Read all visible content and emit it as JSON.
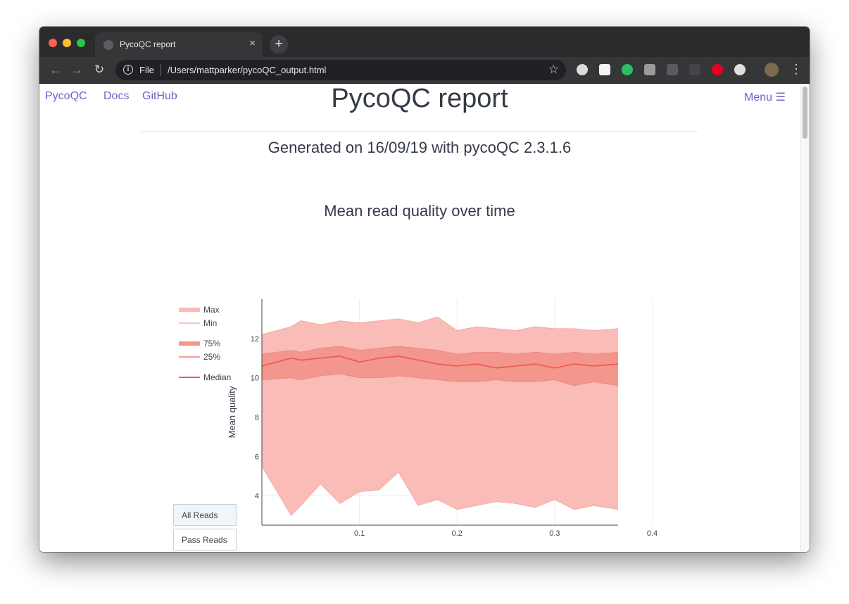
{
  "browser": {
    "tab_title": "PycoQC report",
    "tab_close": "×",
    "new_tab": "+",
    "address_scheme": "File",
    "address_url": "/Users/mattparker/pycoQC_output.html",
    "back": "←",
    "forward": "→",
    "reload": "↻",
    "star": "☆",
    "menu": "⋮",
    "info": "i"
  },
  "nav": {
    "brand": "PycoQC",
    "docs": "Docs",
    "github": "GitHub",
    "menu": "Menu ☰"
  },
  "header": {
    "title": "PycoQC report",
    "subtitle": "Generated on 16/09/19 with pycoQC 2.3.1.6"
  },
  "colors": {
    "link": "#6c63c8",
    "band_outer": "#f9bcb7",
    "band_inner": "#f3968d",
    "median": "#ee5d50",
    "text": "#343a48"
  },
  "extensions": [
    "circle-extension-icon",
    "markdown-extension-icon",
    "evernote-extension-icon",
    "drive-extension-icon",
    "paypal-extension-icon",
    "list-extension-icon",
    "pinterest-extension-icon",
    "record-extension-icon"
  ],
  "buttons": {
    "all_reads": "All Reads",
    "pass_reads": "Pass Reads"
  },
  "chart_data": {
    "type": "area",
    "title": "Mean read quality over time",
    "xlabel": "",
    "ylabel": "Mean quality",
    "xlim": [
      0.0,
      0.365
    ],
    "ylim": [
      2.5,
      14.0
    ],
    "xticks": [
      "0.1",
      "0.2",
      "0.3",
      "0.4"
    ],
    "yticks": [
      "4",
      "6",
      "8",
      "10",
      "12"
    ],
    "grid": true,
    "legend": [
      "Max",
      "Min",
      "75%",
      "25%",
      "Median"
    ],
    "legend_position": "left",
    "x": [
      0.0,
      0.03,
      0.04,
      0.06,
      0.08,
      0.1,
      0.12,
      0.14,
      0.16,
      0.18,
      0.2,
      0.22,
      0.24,
      0.26,
      0.28,
      0.3,
      0.32,
      0.34,
      0.365
    ],
    "series": [
      {
        "name": "Max",
        "values": [
          12.2,
          12.6,
          12.9,
          12.7,
          12.9,
          12.8,
          12.9,
          13.0,
          12.8,
          13.1,
          12.4,
          12.6,
          12.5,
          12.4,
          12.6,
          12.5,
          12.5,
          12.4,
          12.5
        ]
      },
      {
        "name": "75%",
        "values": [
          11.2,
          11.4,
          11.3,
          11.5,
          11.6,
          11.4,
          11.5,
          11.6,
          11.5,
          11.4,
          11.2,
          11.3,
          11.3,
          11.2,
          11.3,
          11.2,
          11.3,
          11.2,
          11.3
        ]
      },
      {
        "name": "Median",
        "values": [
          10.6,
          11.0,
          10.9,
          11.0,
          11.1,
          10.8,
          11.0,
          11.1,
          10.9,
          10.7,
          10.6,
          10.7,
          10.5,
          10.6,
          10.7,
          10.5,
          10.7,
          10.6,
          10.7
        ]
      },
      {
        "name": "25%",
        "values": [
          9.9,
          10.0,
          9.9,
          10.1,
          10.2,
          10.0,
          10.0,
          10.1,
          10.0,
          9.9,
          9.8,
          9.8,
          9.9,
          9.8,
          9.8,
          9.9,
          9.6,
          9.8,
          9.6
        ]
      },
      {
        "name": "Min",
        "values": [
          5.5,
          3.0,
          3.5,
          4.6,
          3.6,
          4.2,
          4.3,
          5.2,
          3.5,
          3.8,
          3.3,
          3.5,
          3.7,
          3.6,
          3.4,
          3.8,
          3.3,
          3.5,
          3.3
        ]
      }
    ]
  }
}
